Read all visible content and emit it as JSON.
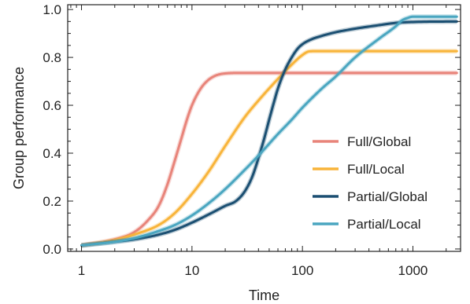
{
  "chart_data": {
    "type": "line",
    "xlabel": "Time",
    "ylabel": "Group performance",
    "xscale": "log",
    "xlim": [
      0.75,
      2700
    ],
    "ylim": [
      -0.01,
      1.02
    ],
    "xticks": [
      1,
      10,
      100,
      1000
    ],
    "xtick_labels": [
      "1",
      "10",
      "100",
      "1000"
    ],
    "yticks": [
      0.0,
      0.2,
      0.4,
      0.6,
      0.8,
      1.0
    ],
    "ytick_labels": [
      "0.0",
      "0.2",
      "0.4",
      "0.6",
      "0.8",
      "1.0"
    ],
    "grid": false,
    "legend_position": "right",
    "series": [
      {
        "name": "Full/Global",
        "color": "#e8847a",
        "x": [
          1,
          2,
          3,
          4,
          5,
          6,
          7,
          8,
          9,
          10,
          12,
          14,
          16,
          18,
          20,
          25,
          30,
          40,
          60,
          100,
          200,
          500,
          1000,
          2500
        ],
        "y": [
          0.015,
          0.04,
          0.07,
          0.12,
          0.18,
          0.27,
          0.37,
          0.46,
          0.54,
          0.6,
          0.67,
          0.705,
          0.722,
          0.73,
          0.733,
          0.735,
          0.735,
          0.735,
          0.735,
          0.735,
          0.735,
          0.735,
          0.735,
          0.735
        ]
      },
      {
        "name": "Full/Local",
        "color": "#f8b43a",
        "x": [
          1,
          2,
          3,
          5,
          7,
          10,
          14,
          20,
          30,
          40,
          60,
          80,
          100,
          115,
          130,
          200,
          500,
          1000,
          2500
        ],
        "y": [
          0.015,
          0.037,
          0.06,
          0.1,
          0.15,
          0.23,
          0.32,
          0.43,
          0.55,
          0.62,
          0.71,
          0.77,
          0.81,
          0.825,
          0.826,
          0.826,
          0.826,
          0.826,
          0.826
        ]
      },
      {
        "name": "Partial/Global",
        "color": "#1b4f72",
        "x": [
          1,
          2,
          3,
          5,
          7,
          10,
          15,
          20,
          25,
          30,
          35,
          40,
          45,
          50,
          55,
          60,
          70,
          80,
          90,
          100,
          120,
          150,
          200,
          300,
          500,
          700,
          1000,
          2500
        ],
        "y": [
          0.015,
          0.03,
          0.04,
          0.06,
          0.08,
          0.11,
          0.15,
          0.18,
          0.2,
          0.24,
          0.3,
          0.38,
          0.46,
          0.54,
          0.61,
          0.67,
          0.75,
          0.8,
          0.835,
          0.855,
          0.875,
          0.89,
          0.905,
          0.92,
          0.935,
          0.944,
          0.948,
          0.95
        ]
      },
      {
        "name": "Partial/Local",
        "color": "#4aa6c0",
        "x": [
          1,
          2,
          3,
          5,
          7,
          10,
          15,
          20,
          30,
          40,
          60,
          80,
          100,
          150,
          200,
          300,
          500,
          700,
          800,
          900,
          1000,
          2500
        ],
        "y": [
          0.015,
          0.03,
          0.045,
          0.075,
          0.1,
          0.14,
          0.2,
          0.25,
          0.33,
          0.39,
          0.48,
          0.54,
          0.59,
          0.67,
          0.72,
          0.8,
          0.88,
          0.93,
          0.955,
          0.965,
          0.97,
          0.97
        ]
      }
    ]
  }
}
